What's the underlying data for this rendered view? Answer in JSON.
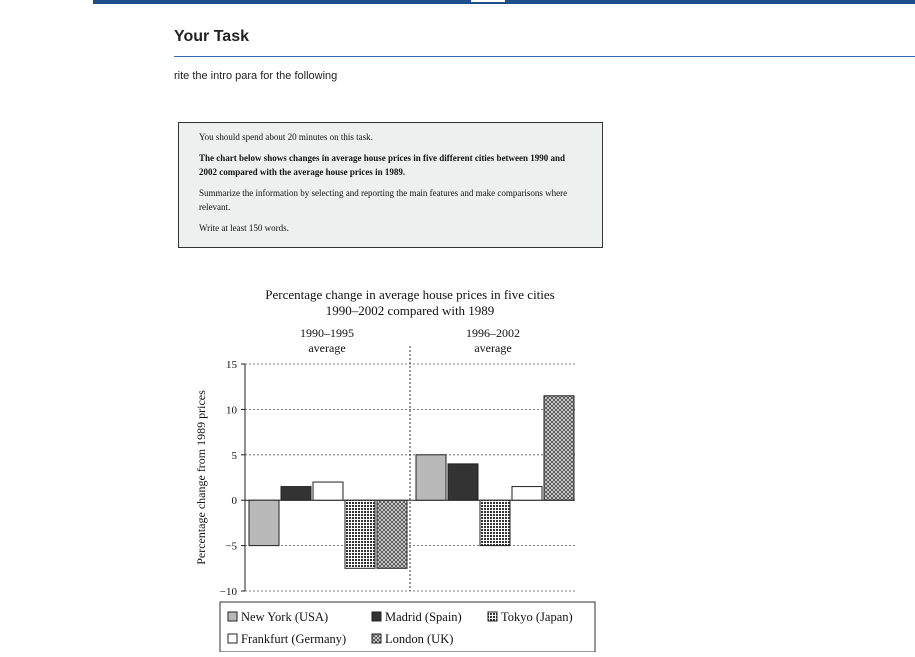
{
  "page": {
    "task_title": "Your Task",
    "intro_text": "rite the intro para for the following"
  },
  "prompt": {
    "line1": "You should spend about 20 minutes on this task.",
    "line2": "The chart below shows changes in average house prices in five different cities between 1990 and 2002 compared with the average house prices in 1989.",
    "line3": "Summarize the information by selecting and reporting the main features and make comparisons where relevant.",
    "line4": "Write at least 150 words."
  },
  "chart_data": {
    "type": "bar",
    "title": "Percentage change in average house prices in five cities",
    "subtitle": "1990–2002 compared with 1989",
    "ylabel": "Percentage change from 1989 prices",
    "xlabel": "",
    "ylim": [
      -10,
      15
    ],
    "yticks": [
      15,
      10,
      5,
      0,
      -5,
      -10
    ],
    "grid": true,
    "legend_position": "bottom",
    "categories": [
      "1990–1995 average",
      "1996–2002 average"
    ],
    "category_lines": [
      [
        "1990–1995",
        "average"
      ],
      [
        "1996–2002",
        "average"
      ]
    ],
    "series": [
      {
        "name": "New York (USA)",
        "values": [
          -5,
          5
        ],
        "fill": "#b9b9b9"
      },
      {
        "name": "Madrid (Spain)",
        "values": [
          1.5,
          4
        ],
        "fill": "#333333"
      },
      {
        "name": "Frankfurt (Germany)",
        "values": [
          2,
          1.5
        ],
        "fill": "#ffffff"
      },
      {
        "name": "Tokyo (Japan)",
        "values": [
          -7.5,
          -5
        ],
        "fill": "pattern:dots"
      },
      {
        "name": "London (UK)",
        "values": [
          -7.5,
          11.5
        ],
        "fill": "pattern:cross"
      }
    ],
    "bar_order": [
      [
        "New York (USA)",
        "Madrid (Spain)",
        "Frankfurt (Germany)",
        "Tokyo (Japan)",
        "London (UK)"
      ],
      [
        "New York (USA)",
        "Madrid (Spain)",
        "Tokyo (Japan)",
        "Frankfurt (Germany)",
        "London (UK)"
      ]
    ],
    "legend_rows": [
      [
        "New York (USA)",
        "Madrid (Spain)",
        "Tokyo (Japan)"
      ],
      [
        "Frankfurt (Germany)",
        "London (UK)"
      ]
    ]
  }
}
